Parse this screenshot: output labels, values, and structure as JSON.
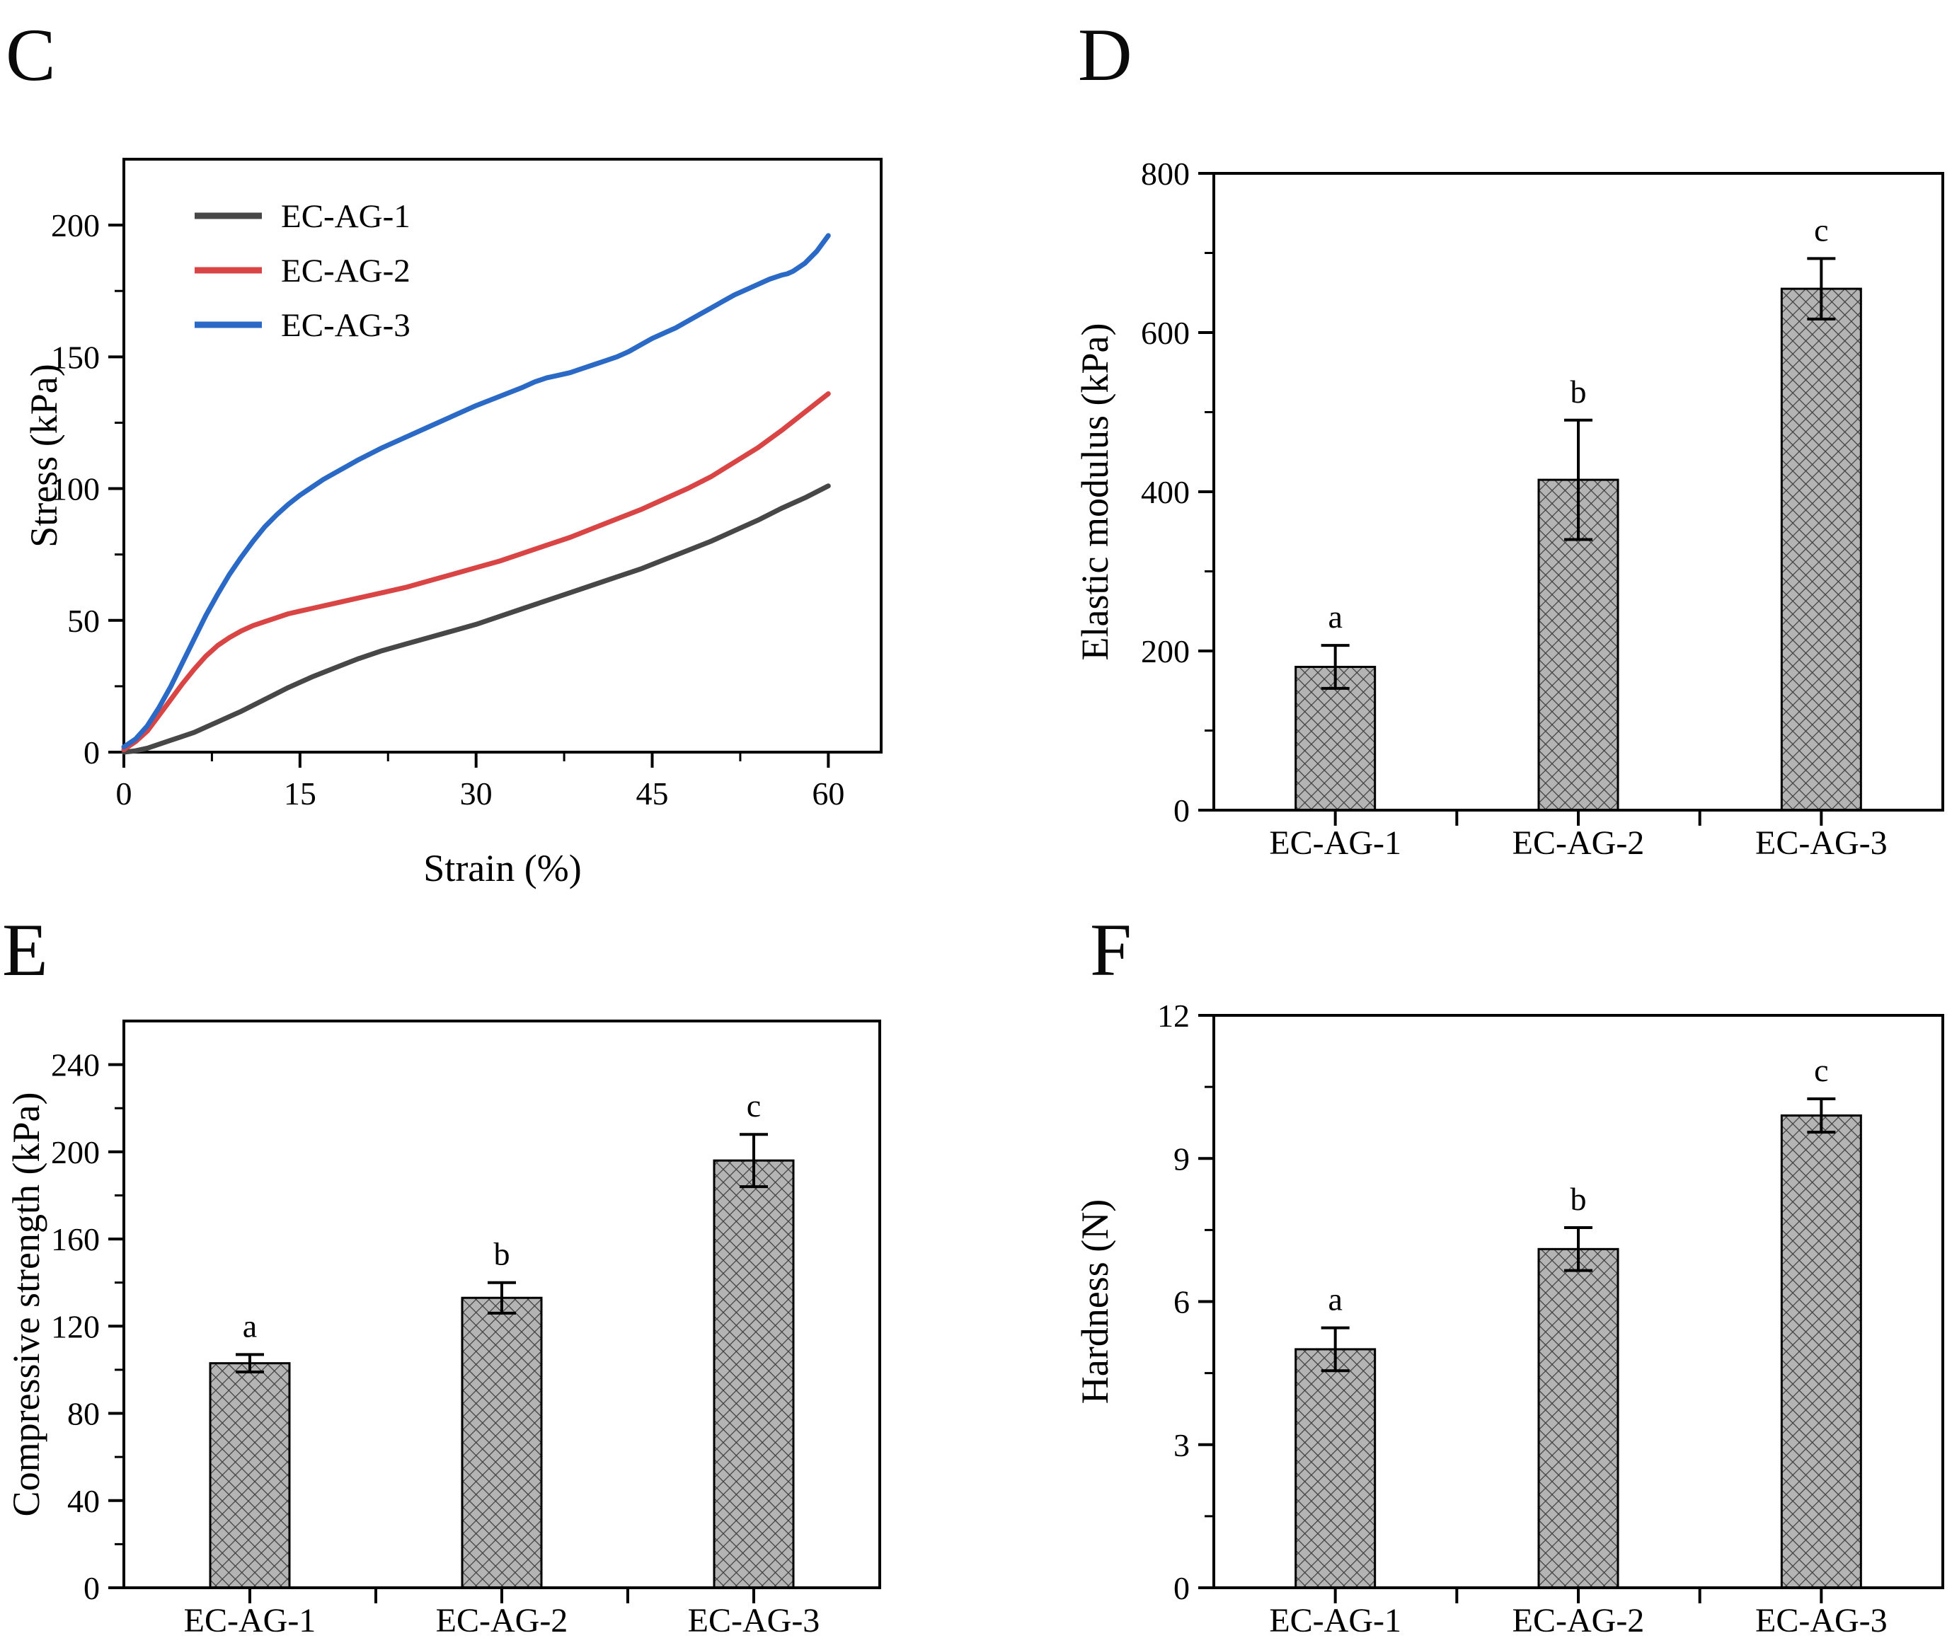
{
  "chart_data": [
    {
      "panel_label": "C",
      "type": "line",
      "xlabel": "Strain (%)",
      "ylabel": "Stress (kPa)",
      "xlim": [
        0,
        64.5
      ],
      "ylim": [
        0,
        225
      ],
      "xticks": [
        0,
        15,
        30,
        45,
        60
      ],
      "yticks": [
        0,
        50,
        100,
        150,
        200
      ],
      "x_minor_step": 7.5,
      "y_minor_step": 25,
      "grid": false,
      "legend_position": "top-left",
      "series": [
        {
          "name": "EC-AG-1",
          "color": "#474747",
          "x": [
            0,
            1,
            2,
            3,
            4,
            5,
            6,
            7,
            8,
            9,
            10,
            12,
            14,
            16,
            18,
            20,
            22,
            24,
            26,
            28,
            30,
            32,
            34,
            36,
            38,
            40,
            42,
            44,
            46,
            48,
            50,
            52,
            54,
            56,
            58,
            60
          ],
          "y": [
            0,
            0.5,
            1.5,
            3,
            4.5,
            6,
            7.5,
            9.5,
            11.5,
            13.5,
            15.5,
            20,
            24.5,
            28.5,
            32,
            35.5,
            38.5,
            41,
            43.5,
            46,
            48.5,
            51.5,
            54.5,
            57.5,
            60.5,
            63.5,
            66.5,
            69.5,
            73,
            76.5,
            80,
            84,
            88,
            92.5,
            96.5,
            101
          ]
        },
        {
          "name": "EC-AG-2",
          "color": "#d94545",
          "x": [
            0,
            1,
            2,
            3,
            4,
            5,
            6,
            7,
            8,
            9,
            10,
            11,
            12,
            13,
            14,
            15,
            16,
            18,
            20,
            22,
            24,
            26,
            28,
            30,
            32,
            34,
            36,
            38,
            40,
            42,
            44,
            46,
            48,
            50,
            52,
            54,
            56,
            58,
            60
          ],
          "y": [
            1,
            4,
            8,
            14,
            20,
            26,
            31.5,
            36.5,
            40.5,
            43.5,
            46,
            48,
            49.5,
            51,
            52.5,
            53.5,
            54.5,
            56.5,
            58.5,
            60.5,
            62.5,
            65,
            67.5,
            70,
            72.5,
            75.5,
            78.5,
            81.5,
            85,
            88.5,
            92,
            96,
            100,
            104.5,
            110,
            115.5,
            122,
            129,
            136
          ]
        },
        {
          "name": "EC-AG-3",
          "color": "#2a6ac6",
          "x": [
            0,
            1,
            2,
            3,
            4,
            5,
            6,
            7,
            8,
            9,
            10,
            11,
            12,
            13,
            14,
            15,
            16,
            17,
            18,
            19,
            20,
            22,
            24,
            26,
            28,
            30,
            32,
            34,
            35,
            36,
            37,
            38,
            39,
            40,
            41,
            42,
            43,
            44,
            45,
            46,
            47,
            48,
            49,
            50,
            51,
            52,
            53,
            54,
            55,
            56,
            56.5,
            57,
            58,
            59,
            60
          ],
          "y": [
            2,
            5,
            10,
            17,
            25,
            34,
            43,
            52,
            60,
            67.5,
            74,
            80,
            85.5,
            90,
            94,
            97.5,
            100.5,
            103.5,
            106,
            108.5,
            111,
            115.5,
            119.5,
            123.5,
            127.5,
            131.5,
            135,
            138.5,
            140.5,
            142,
            143,
            144,
            145.5,
            147,
            148.5,
            150,
            152,
            154.5,
            157,
            159,
            161,
            163.5,
            166,
            168.5,
            171,
            173.5,
            175.5,
            177.5,
            179.5,
            181,
            181.5,
            182.5,
            185.5,
            190,
            196
          ]
        }
      ]
    },
    {
      "panel_label": "D",
      "type": "bar",
      "ylabel": "Elastic modulus (kPa)",
      "categories": [
        "EC-AG-1",
        "EC-AG-2",
        "EC-AG-3"
      ],
      "values": [
        180,
        415,
        655
      ],
      "errors": [
        27,
        75,
        38
      ],
      "significance_letters": [
        "a",
        "b",
        "c"
      ],
      "ylim": [
        0,
        800
      ],
      "yticks": [
        0,
        200,
        400,
        600,
        800
      ],
      "y_minor_step": 100,
      "grid": false,
      "bar_fill": "#b4b4b4",
      "bar_hatch": "#3f3f3f",
      "bar_edge": "#000000"
    },
    {
      "panel_label": "E",
      "type": "bar",
      "ylabel": "Compressive strength (kPa)",
      "categories": [
        "EC-AG-1",
        "EC-AG-2",
        "EC-AG-3"
      ],
      "values": [
        103,
        133,
        196
      ],
      "errors": [
        4,
        7,
        12
      ],
      "significance_letters": [
        "a",
        "b",
        "c"
      ],
      "ylim": [
        0,
        260
      ],
      "yticks": [
        0,
        40,
        80,
        120,
        160,
        200,
        240
      ],
      "y_minor_step": 20,
      "grid": false,
      "bar_fill": "#b4b4b4",
      "bar_hatch": "#3f3f3f",
      "bar_edge": "#000000"
    },
    {
      "panel_label": "F",
      "type": "bar",
      "ylabel": "Hardness (N)",
      "categories": [
        "EC-AG-1",
        "EC-AG-2",
        "EC-AG-3"
      ],
      "values": [
        5.0,
        7.1,
        9.9
      ],
      "errors": [
        0.45,
        0.45,
        0.35
      ],
      "significance_letters": [
        "a",
        "b",
        "c"
      ],
      "ylim": [
        0,
        12
      ],
      "yticks": [
        0,
        3,
        6,
        9,
        12
      ],
      "y_minor_step": 1.5,
      "grid": false,
      "bar_fill": "#b4b4b4",
      "bar_hatch": "#3f3f3f",
      "bar_edge": "#000000"
    }
  ]
}
